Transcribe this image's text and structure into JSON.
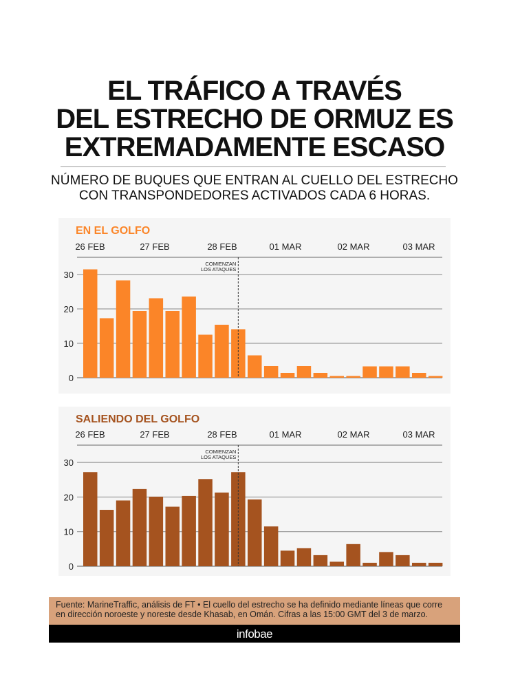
{
  "title_lines": [
    "EL TRÁFICO A TRAVÉS",
    "DEL ESTRECHO DE ORMUZ ES",
    "EXTREMADAMENTE ESCASO"
  ],
  "subtitle_lines": [
    "NÚMERO DE BUQUES QUE ENTRAN AL CUELLO DEL ESTRECHO",
    "CON TRANSPONDEDORES ACTIVADOS CADA 6 HORAS."
  ],
  "source_lines": [
    "Fuente: MarineTraffic, análisis de FT • El cuello del estrecho se ha definido mediante líneas que corre",
    "en dirección noroeste y noreste desde Khasab, en Omán. Cifras a las 15:00 GMT del 3 de marzo."
  ],
  "footer_logo": "infobae",
  "chart_data": [
    {
      "type": "bar",
      "title": "EN EL GOLFO",
      "color": "#fb8528",
      "date_labels": [
        "26 FEB",
        "27 FEB",
        "28 FEB",
        "01 MAR",
        "02 MAR",
        "03 MAR"
      ],
      "yticks": [
        0,
        10,
        20,
        30
      ],
      "ylim": [
        0,
        35
      ],
      "grid": true,
      "annotation": {
        "lines": [
          "COMIENZAN",
          "LOS ATAQUES"
        ],
        "bar_index": 9
      },
      "values": [
        31.5,
        17.3,
        28.3,
        19.4,
        23.1,
        19.4,
        23.6,
        12.5,
        15.4,
        14.1,
        6.5,
        3.4,
        1.4,
        3.4,
        1.4,
        0.5,
        0.5,
        3.3,
        3.3,
        3.3,
        1.4,
        0.5
      ]
    },
    {
      "type": "bar",
      "title": "SALIENDO DEL GOLFO",
      "color": "#a5531f",
      "date_labels": [
        "26 FEB",
        "27 FEB",
        "28 FEB",
        "01 MAR",
        "02 MAR",
        "03 MAR"
      ],
      "yticks": [
        0,
        10,
        20,
        30
      ],
      "ylim": [
        0,
        35
      ],
      "grid": true,
      "annotation": {
        "lines": [
          "COMIENZAN",
          "LOS ATAQUES"
        ],
        "bar_index": 9
      },
      "values": [
        27.2,
        16.3,
        19.0,
        22.3,
        20.1,
        17.2,
        20.3,
        25.2,
        21.3,
        27.2,
        19.3,
        11.5,
        4.5,
        5.2,
        3.2,
        1.3,
        6.4,
        1.0,
        4.1,
        3.2,
        1.0,
        1.0
      ]
    }
  ]
}
